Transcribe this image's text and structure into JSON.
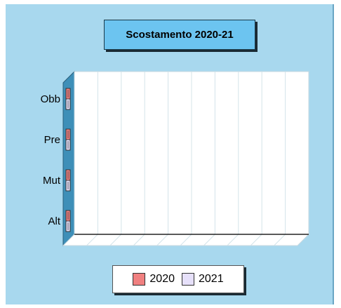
{
  "chart_data": {
    "type": "bar",
    "orientation": "horizontal",
    "title": "Scostamento 2020-21",
    "categories": [
      "Obb",
      "Pre",
      "Mut",
      "Alt"
    ],
    "series": [
      {
        "name": "2020",
        "values": [
          0,
          0,
          0,
          0
        ],
        "color": "#f08080"
      },
      {
        "name": "2021",
        "values": [
          0,
          0,
          0,
          0
        ],
        "color": "#e6e0fa"
      }
    ],
    "xlabel": "",
    "ylabel": "",
    "grid": true,
    "legend_position": "bottom"
  }
}
